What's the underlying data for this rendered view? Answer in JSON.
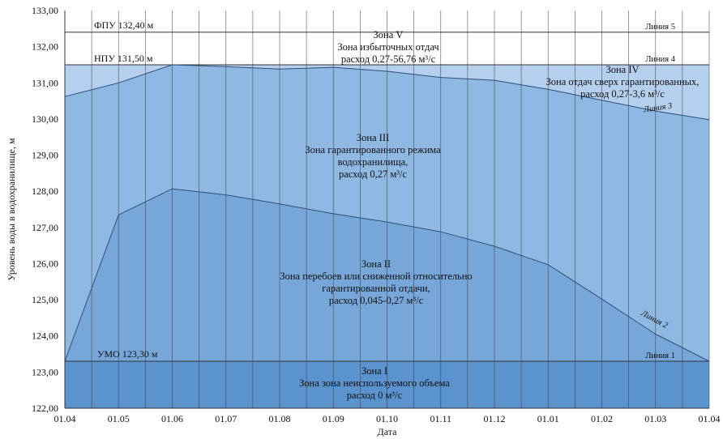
{
  "chart_data": {
    "type": "area",
    "xlabel": "Дата",
    "ylabel": "Уровень воды в водохранилище, м",
    "ylim": [
      122,
      133
    ],
    "y_ticks": [
      "122,00",
      "123,00",
      "124,00",
      "125,00",
      "126,00",
      "127,00",
      "128,00",
      "129,00",
      "130,00",
      "131,00",
      "132,00",
      "133,00"
    ],
    "categories": [
      "01.04",
      "01.05",
      "01.06",
      "01.07",
      "01.08",
      "01.09",
      "01.10",
      "01.11",
      "01.12",
      "01.01",
      "01.02",
      "01.03",
      "01.04"
    ],
    "grid": "vertical lines",
    "colors": {
      "zone1": "#5b93cf",
      "zone2": "#77a7d9",
      "zone3": "#8fb8e2",
      "zone4": "#b5d0ee",
      "zone5": "#ffffff",
      "line": "#2d4f7a",
      "grid": "#3c3c3c"
    },
    "levels": {
      "fpu": {
        "value": 132.4,
        "label": "ФПУ 132,40 м",
        "line_label": "Линия 5"
      },
      "npu": {
        "value": 131.5,
        "label": "НПУ 131,50 м",
        "line_label": "Линия 4"
      },
      "umo": {
        "value": 123.3,
        "label": "УМО 123,30 м",
        "line_label": "Линия 1"
      }
    },
    "series": [
      {
        "name": "Линия 3",
        "values": [
          130.62,
          131.0,
          131.5,
          131.45,
          131.38,
          131.43,
          131.32,
          131.15,
          131.07,
          130.82,
          130.52,
          130.22,
          129.98
        ]
      },
      {
        "name": "Линия 2",
        "values": [
          123.3,
          127.35,
          128.07,
          127.9,
          127.65,
          127.38,
          127.15,
          126.88,
          126.48,
          125.97,
          125.02,
          124.05,
          123.3
        ]
      }
    ],
    "zones": [
      {
        "title": "Зона V",
        "lines": [
          "Зона избыточных отдач",
          "расход 0,27-56,76 м³/с"
        ]
      },
      {
        "title": "Зона IV",
        "lines": [
          "Зона отдач сверх гарантированных,",
          "расход 0,27-3,6 м³/с"
        ]
      },
      {
        "title": "Зона III",
        "lines": [
          "Зона гарантированного режима",
          "водохранилища,",
          "расход 0,27 м³/с"
        ]
      },
      {
        "title": "Зона II",
        "lines": [
          "Зона перебоев или сниженной относительно",
          "гарантированной отдачи,",
          "расход 0,045-0,27 м³/с"
        ]
      },
      {
        "title": "Зона I",
        "lines": [
          "Зона зона неиспользуемого объема",
          "расход 0 м³/с"
        ]
      }
    ]
  }
}
